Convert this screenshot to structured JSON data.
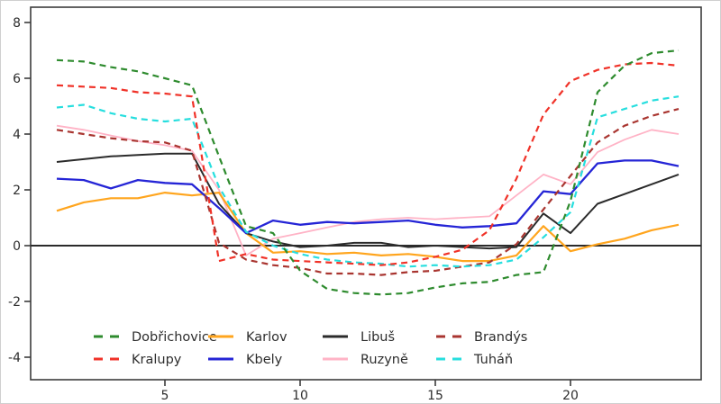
{
  "figure": {
    "title": "",
    "y_tick_labels": [
      "8",
      "6",
      "4",
      "2",
      "0",
      "-2",
      "-4"
    ],
    "x_tick_labels": [
      "5",
      "10",
      "15",
      "20"
    ]
  },
  "chart_data": {
    "type": "line",
    "x": [
      1,
      2,
      3,
      4,
      5,
      6,
      7,
      8,
      9,
      10,
      11,
      12,
      13,
      14,
      15,
      16,
      17,
      18,
      19,
      20,
      21,
      22,
      23,
      24
    ],
    "xticks": [
      5,
      10,
      15,
      20
    ],
    "yticks": [
      8,
      6,
      4,
      2,
      0,
      -2,
      -4
    ],
    "xlim": [
      0,
      25
    ],
    "ylim": [
      -4.4,
      8.5
    ],
    "grid": false,
    "zero_line": true,
    "legend_position": "bottom-inside",
    "legend_rows": [
      [
        "Dobřichovice",
        "Karlov",
        "Libuš",
        "Brandýs"
      ],
      [
        "Kralupy",
        "Kbely",
        "Ruzyně",
        "Tuháň"
      ]
    ],
    "series": [
      {
        "name": "Ruzyně",
        "color": "#ffb3c6",
        "dash": false,
        "width": 1.8,
        "values": [
          4.3,
          4.15,
          3.95,
          3.75,
          3.6,
          3.4,
          2.0,
          -0.35,
          0.25,
          0.45,
          0.65,
          0.85,
          0.95,
          1.0,
          0.95,
          1.0,
          1.05,
          1.8,
          2.55,
          2.2,
          3.35,
          3.8,
          4.15,
          4.0
        ]
      },
      {
        "name": "Karlov",
        "color": "#ffa51e",
        "dash": false,
        "width": 2.2,
        "values": [
          1.25,
          1.55,
          1.7,
          1.7,
          1.9,
          1.8,
          1.9,
          0.45,
          -0.25,
          -0.2,
          -0.3,
          -0.25,
          -0.35,
          -0.3,
          -0.4,
          -0.55,
          -0.55,
          -0.35,
          0.7,
          -0.2,
          0.05,
          0.25,
          0.55,
          0.75
        ]
      },
      {
        "name": "Libuš",
        "color": "#2b2b2b",
        "dash": false,
        "width": 2.0,
        "values": [
          3.0,
          3.1,
          3.2,
          3.25,
          3.3,
          3.3,
          1.5,
          0.45,
          0.15,
          -0.05,
          0.0,
          0.1,
          0.1,
          -0.05,
          0.0,
          -0.05,
          -0.1,
          -0.05,
          1.15,
          0.45,
          1.5,
          1.85,
          2.2,
          2.55
        ]
      },
      {
        "name": "Kbely",
        "color": "#2525d6",
        "dash": false,
        "width": 2.3,
        "values": [
          2.4,
          2.35,
          2.05,
          2.35,
          2.25,
          2.2,
          1.35,
          0.45,
          0.9,
          0.75,
          0.85,
          0.8,
          0.85,
          0.9,
          0.75,
          0.65,
          0.7,
          0.8,
          1.95,
          1.85,
          2.95,
          3.05,
          3.05,
          2.85
        ]
      },
      {
        "name": "Brandýs",
        "color": "#a93530",
        "dash": true,
        "width": 2.2,
        "values": [
          4.15,
          4.0,
          3.85,
          3.75,
          3.7,
          3.4,
          0.1,
          -0.5,
          -0.7,
          -0.8,
          -1.0,
          -1.0,
          -1.05,
          -0.95,
          -0.9,
          -0.75,
          -0.6,
          0.05,
          1.3,
          2.5,
          3.7,
          4.3,
          4.65,
          4.9
        ]
      },
      {
        "name": "Tuháň",
        "color": "#27dede",
        "dash": true,
        "width": 2.2,
        "values": [
          4.95,
          5.05,
          4.75,
          4.55,
          4.45,
          4.55,
          2.1,
          0.5,
          0.0,
          -0.3,
          -0.5,
          -0.6,
          -0.65,
          -0.75,
          -0.7,
          -0.75,
          -0.7,
          -0.5,
          0.3,
          1.2,
          4.6,
          4.9,
          5.2,
          5.35
        ]
      },
      {
        "name": "Kralupy",
        "color": "#f03228",
        "dash": true,
        "width": 2.2,
        "values": [
          5.75,
          5.7,
          5.65,
          5.5,
          5.45,
          5.35,
          -0.55,
          -0.3,
          -0.5,
          -0.55,
          -0.6,
          -0.65,
          -0.7,
          -0.6,
          -0.4,
          -0.15,
          0.55,
          2.4,
          4.7,
          5.9,
          6.3,
          6.5,
          6.55,
          6.45
        ]
      },
      {
        "name": "Dobřichovice",
        "color": "#2e8b2e",
        "dash": true,
        "width": 2.2,
        "values": [
          6.65,
          6.6,
          6.4,
          6.25,
          6.0,
          5.75,
          3.2,
          0.7,
          0.45,
          -0.9,
          -1.55,
          -1.7,
          -1.75,
          -1.7,
          -1.5,
          -1.35,
          -1.3,
          -1.05,
          -0.95,
          1.6,
          5.5,
          6.45,
          6.9,
          7.0
        ]
      }
    ]
  }
}
